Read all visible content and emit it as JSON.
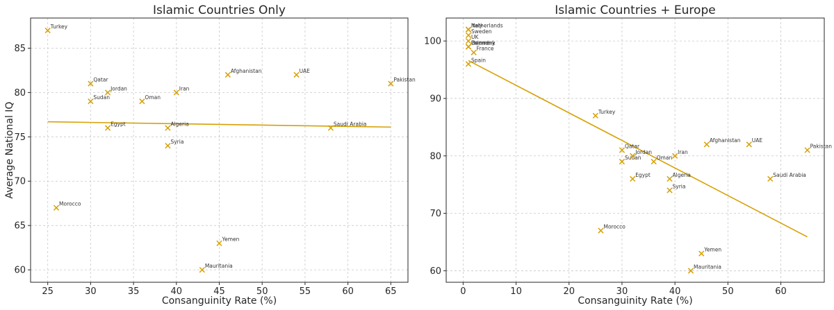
{
  "colors": {
    "marker": "#d6a003",
    "trend": "#d6a003"
  },
  "chart_data": [
    {
      "type": "scatter",
      "title": "Islamic Countries Only",
      "xlabel": "Consanguinity Rate (%)",
      "ylabel": "Average National IQ",
      "xlim": [
        23,
        67
      ],
      "ylim": [
        58.6,
        88.4
      ],
      "xticks": [
        25,
        30,
        35,
        40,
        45,
        50,
        55,
        60,
        65
      ],
      "yticks": [
        60,
        65,
        70,
        75,
        80,
        85
      ],
      "grid": true,
      "marker": "x",
      "points": [
        {
          "label": "Turkey",
          "x": 25,
          "y": 87
        },
        {
          "label": "Morocco",
          "x": 26,
          "y": 67
        },
        {
          "label": "Qatar",
          "x": 30,
          "y": 81
        },
        {
          "label": "Sudan",
          "x": 30,
          "y": 79
        },
        {
          "label": "Jordan",
          "x": 32,
          "y": 80
        },
        {
          "label": "Egypt",
          "x": 32,
          "y": 76
        },
        {
          "label": "Oman",
          "x": 36,
          "y": 79
        },
        {
          "label": "Algeria",
          "x": 39,
          "y": 76
        },
        {
          "label": "Syria",
          "x": 39,
          "y": 74
        },
        {
          "label": "Iran",
          "x": 40,
          "y": 80
        },
        {
          "label": "Mauritania",
          "x": 43,
          "y": 60
        },
        {
          "label": "Yemen",
          "x": 45,
          "y": 63
        },
        {
          "label": "Afghanistan",
          "x": 46,
          "y": 82
        },
        {
          "label": "UAE",
          "x": 54,
          "y": 82
        },
        {
          "label": "Saudi Arabia",
          "x": 58,
          "y": 76
        },
        {
          "label": "Pakistan",
          "x": 65,
          "y": 81
        }
      ],
      "trendline": {
        "x": [
          25,
          65
        ],
        "y": [
          76.7,
          76.1
        ]
      }
    },
    {
      "type": "scatter",
      "title": "Islamic Countries + Europe",
      "xlabel": "Consanguinity Rate (%)",
      "ylabel": "",
      "xlim": [
        -3.2,
        68.2
      ],
      "ylim": [
        58.0,
        104.0
      ],
      "xticks": [
        0,
        10,
        20,
        30,
        40,
        50,
        60
      ],
      "yticks": [
        60,
        70,
        80,
        90,
        100
      ],
      "grid": true,
      "marker": "x",
      "points": [
        {
          "label": "Netherlands",
          "x": 1,
          "y": 102
        },
        {
          "label": "Italy",
          "x": 1,
          "y": 102
        },
        {
          "label": "Sweden",
          "x": 1,
          "y": 101
        },
        {
          "label": "UK",
          "x": 1,
          "y": 100
        },
        {
          "label": "Poland",
          "x": 1,
          "y": 99
        },
        {
          "label": "Germany",
          "x": 1,
          "y": 99
        },
        {
          "label": "Denmark",
          "x": 1,
          "y": 99
        },
        {
          "label": "France",
          "x": 2,
          "y": 98
        },
        {
          "label": "Spain",
          "x": 1,
          "y": 96
        },
        {
          "label": "Turkey",
          "x": 25,
          "y": 87
        },
        {
          "label": "Morocco",
          "x": 26,
          "y": 67
        },
        {
          "label": "Qatar",
          "x": 30,
          "y": 81
        },
        {
          "label": "Sudan",
          "x": 30,
          "y": 79
        },
        {
          "label": "Jordan",
          "x": 32,
          "y": 80
        },
        {
          "label": "Egypt",
          "x": 32,
          "y": 76
        },
        {
          "label": "Oman",
          "x": 36,
          "y": 79
        },
        {
          "label": "Algeria",
          "x": 39,
          "y": 76
        },
        {
          "label": "Syria",
          "x": 39,
          "y": 74
        },
        {
          "label": "Iran",
          "x": 40,
          "y": 80
        },
        {
          "label": "Mauritania",
          "x": 43,
          "y": 60
        },
        {
          "label": "Yemen",
          "x": 45,
          "y": 63
        },
        {
          "label": "Afghanistan",
          "x": 46,
          "y": 82
        },
        {
          "label": "UAE",
          "x": 54,
          "y": 82
        },
        {
          "label": "Saudi Arabia",
          "x": 58,
          "y": 76
        },
        {
          "label": "Pakistan",
          "x": 65,
          "y": 81
        }
      ],
      "trendline": {
        "x": [
          1,
          65
        ],
        "y": [
          96.6,
          65.9
        ]
      }
    }
  ]
}
